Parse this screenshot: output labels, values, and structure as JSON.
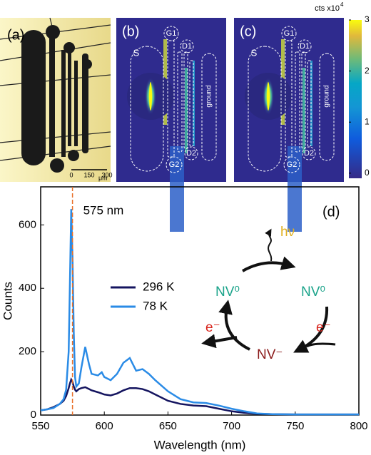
{
  "panels": {
    "a": {
      "letter": "(a)",
      "scale_labels": [
        0,
        150,
        300
      ],
      "scale_unit": "μm"
    },
    "b": {
      "letter": "(b)"
    },
    "c": {
      "letter": "(c)"
    },
    "map_labels": [
      "S",
      "G1",
      "D1",
      "D2",
      "G2",
      "ground"
    ],
    "colorbar": {
      "label": "cts x10",
      "exponent": 4,
      "clim": [
        -0.1,
        3
      ],
      "ticks": [
        0,
        1,
        2,
        3
      ]
    }
  },
  "chart_data": {
    "type": "line",
    "panel": "(d)",
    "x_label": "Wavelength (nm)",
    "y_label": "Counts",
    "x": [
      550,
      555,
      560,
      565,
      568,
      570,
      572,
      573,
      574,
      575,
      576,
      577,
      578,
      580,
      582,
      585,
      588,
      590,
      595,
      598,
      600,
      605,
      610,
      615,
      620,
      625,
      630,
      635,
      640,
      650,
      660,
      670,
      680,
      690,
      700,
      710,
      720,
      730,
      750,
      770,
      800
    ],
    "series": [
      {
        "name": "296 K",
        "color": "#14145f",
        "values": [
          15,
          18,
          25,
          35,
          45,
          60,
          85,
          100,
          112,
          105,
          90,
          80,
          75,
          82,
          85,
          88,
          82,
          78,
          72,
          68,
          65,
          62,
          68,
          78,
          85,
          85,
          82,
          75,
          65,
          45,
          35,
          30,
          28,
          20,
          12,
          7,
          4,
          3,
          2,
          2,
          2
        ]
      },
      {
        "name": "78 K",
        "color": "#2a8be6",
        "values": [
          15,
          18,
          22,
          35,
          50,
          80,
          200,
          420,
          650,
          500,
          260,
          120,
          90,
          100,
          150,
          215,
          160,
          130,
          125,
          135,
          120,
          110,
          130,
          165,
          180,
          140,
          145,
          130,
          110,
          75,
          50,
          40,
          38,
          30,
          20,
          12,
          5,
          3,
          2,
          2,
          2
        ]
      }
    ],
    "xlim": [
      550,
      800
    ],
    "ylim": [
      0,
      720
    ],
    "xticks": [
      550,
      600,
      650,
      700,
      750,
      800
    ],
    "yticks": [
      0,
      200,
      400,
      600
    ],
    "annotation": {
      "x": 575,
      "label": "575 nm",
      "color": "#e8702a"
    },
    "diagram": {
      "hv": "hν",
      "nv0_left": "NV⁰",
      "nv0_right": "NV⁰",
      "nv_minus": "NV⁻",
      "e_left": "e⁻",
      "e_right": "e⁻"
    }
  }
}
